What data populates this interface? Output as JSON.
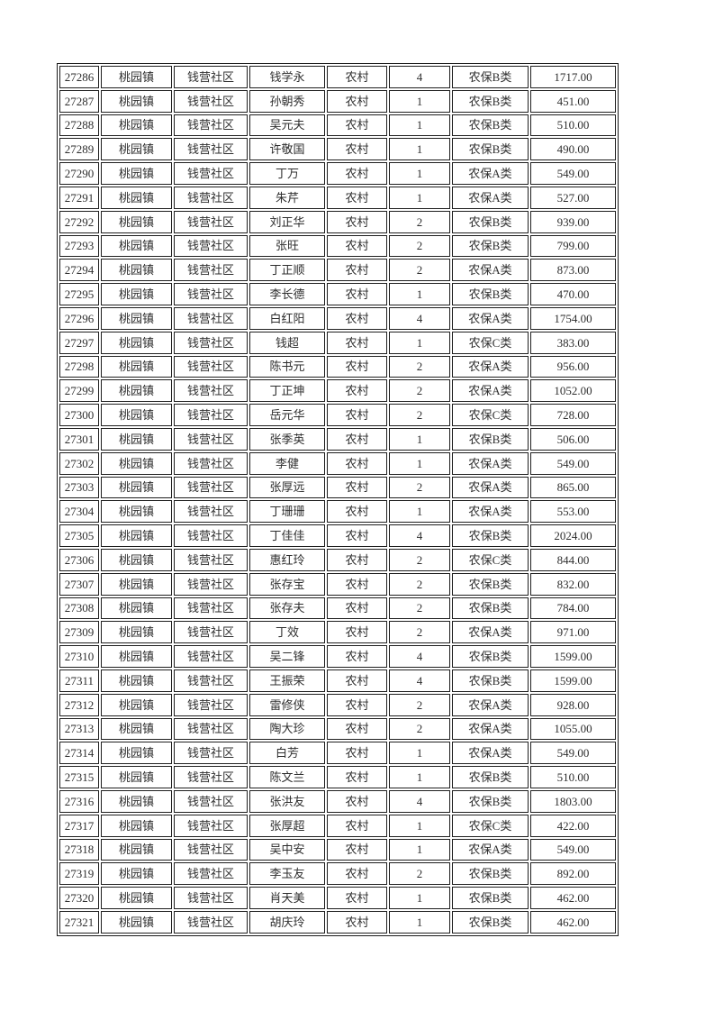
{
  "table": {
    "columns": [
      {
        "key": "id"
      },
      {
        "key": "town"
      },
      {
        "key": "community"
      },
      {
        "key": "name"
      },
      {
        "key": "type"
      },
      {
        "key": "count"
      },
      {
        "key": "category"
      },
      {
        "key": "amount"
      }
    ],
    "rows": [
      {
        "id": "27286",
        "town": "桃园镇",
        "community": "钱营社区",
        "name": "钱学永",
        "type": "农村",
        "count": "4",
        "category": "农保B类",
        "amount": "1717.00"
      },
      {
        "id": "27287",
        "town": "桃园镇",
        "community": "钱营社区",
        "name": "孙朝秀",
        "type": "农村",
        "count": "1",
        "category": "农保B类",
        "amount": "451.00"
      },
      {
        "id": "27288",
        "town": "桃园镇",
        "community": "钱营社区",
        "name": "吴元夫",
        "type": "农村",
        "count": "1",
        "category": "农保B类",
        "amount": "510.00"
      },
      {
        "id": "27289",
        "town": "桃园镇",
        "community": "钱营社区",
        "name": "许敬国",
        "type": "农村",
        "count": "1",
        "category": "农保B类",
        "amount": "490.00"
      },
      {
        "id": "27290",
        "town": "桃园镇",
        "community": "钱营社区",
        "name": "丁万",
        "type": "农村",
        "count": "1",
        "category": "农保A类",
        "amount": "549.00"
      },
      {
        "id": "27291",
        "town": "桃园镇",
        "community": "钱营社区",
        "name": "朱芹",
        "type": "农村",
        "count": "1",
        "category": "农保A类",
        "amount": "527.00"
      },
      {
        "id": "27292",
        "town": "桃园镇",
        "community": "钱营社区",
        "name": "刘正华",
        "type": "农村",
        "count": "2",
        "category": "农保B类",
        "amount": "939.00"
      },
      {
        "id": "27293",
        "town": "桃园镇",
        "community": "钱营社区",
        "name": "张旺",
        "type": "农村",
        "count": "2",
        "category": "农保B类",
        "amount": "799.00"
      },
      {
        "id": "27294",
        "town": "桃园镇",
        "community": "钱营社区",
        "name": "丁正顺",
        "type": "农村",
        "count": "2",
        "category": "农保A类",
        "amount": "873.00"
      },
      {
        "id": "27295",
        "town": "桃园镇",
        "community": "钱营社区",
        "name": "李长德",
        "type": "农村",
        "count": "1",
        "category": "农保B类",
        "amount": "470.00"
      },
      {
        "id": "27296",
        "town": "桃园镇",
        "community": "钱营社区",
        "name": "白红阳",
        "type": "农村",
        "count": "4",
        "category": "农保A类",
        "amount": "1754.00"
      },
      {
        "id": "27297",
        "town": "桃园镇",
        "community": "钱营社区",
        "name": "钱超",
        "type": "农村",
        "count": "1",
        "category": "农保C类",
        "amount": "383.00"
      },
      {
        "id": "27298",
        "town": "桃园镇",
        "community": "钱营社区",
        "name": "陈书元",
        "type": "农村",
        "count": "2",
        "category": "农保A类",
        "amount": "956.00"
      },
      {
        "id": "27299",
        "town": "桃园镇",
        "community": "钱营社区",
        "name": "丁正坤",
        "type": "农村",
        "count": "2",
        "category": "农保A类",
        "amount": "1052.00"
      },
      {
        "id": "27300",
        "town": "桃园镇",
        "community": "钱营社区",
        "name": "岳元华",
        "type": "农村",
        "count": "2",
        "category": "农保C类",
        "amount": "728.00"
      },
      {
        "id": "27301",
        "town": "桃园镇",
        "community": "钱营社区",
        "name": "张季英",
        "type": "农村",
        "count": "1",
        "category": "农保B类",
        "amount": "506.00"
      },
      {
        "id": "27302",
        "town": "桃园镇",
        "community": "钱营社区",
        "name": "李健",
        "type": "农村",
        "count": "1",
        "category": "农保A类",
        "amount": "549.00"
      },
      {
        "id": "27303",
        "town": "桃园镇",
        "community": "钱营社区",
        "name": "张厚远",
        "type": "农村",
        "count": "2",
        "category": "农保A类",
        "amount": "865.00"
      },
      {
        "id": "27304",
        "town": "桃园镇",
        "community": "钱营社区",
        "name": "丁珊珊",
        "type": "农村",
        "count": "1",
        "category": "农保A类",
        "amount": "553.00"
      },
      {
        "id": "27305",
        "town": "桃园镇",
        "community": "钱营社区",
        "name": "丁佳佳",
        "type": "农村",
        "count": "4",
        "category": "农保B类",
        "amount": "2024.00"
      },
      {
        "id": "27306",
        "town": "桃园镇",
        "community": "钱营社区",
        "name": "惠红玲",
        "type": "农村",
        "count": "2",
        "category": "农保C类",
        "amount": "844.00"
      },
      {
        "id": "27307",
        "town": "桃园镇",
        "community": "钱营社区",
        "name": "张存宝",
        "type": "农村",
        "count": "2",
        "category": "农保B类",
        "amount": "832.00"
      },
      {
        "id": "27308",
        "town": "桃园镇",
        "community": "钱营社区",
        "name": "张存夫",
        "type": "农村",
        "count": "2",
        "category": "农保B类",
        "amount": "784.00"
      },
      {
        "id": "27309",
        "town": "桃园镇",
        "community": "钱营社区",
        "name": "丁效",
        "type": "农村",
        "count": "2",
        "category": "农保A类",
        "amount": "971.00"
      },
      {
        "id": "27310",
        "town": "桃园镇",
        "community": "钱营社区",
        "name": "吴二锋",
        "type": "农村",
        "count": "4",
        "category": "农保B类",
        "amount": "1599.00"
      },
      {
        "id": "27311",
        "town": "桃园镇",
        "community": "钱营社区",
        "name": "王振荣",
        "type": "农村",
        "count": "4",
        "category": "农保B类",
        "amount": "1599.00"
      },
      {
        "id": "27312",
        "town": "桃园镇",
        "community": "钱营社区",
        "name": "雷修侠",
        "type": "农村",
        "count": "2",
        "category": "农保A类",
        "amount": "928.00"
      },
      {
        "id": "27313",
        "town": "桃园镇",
        "community": "钱营社区",
        "name": "陶大珍",
        "type": "农村",
        "count": "2",
        "category": "农保A类",
        "amount": "1055.00"
      },
      {
        "id": "27314",
        "town": "桃园镇",
        "community": "钱营社区",
        "name": "白芳",
        "type": "农村",
        "count": "1",
        "category": "农保A类",
        "amount": "549.00"
      },
      {
        "id": "27315",
        "town": "桃园镇",
        "community": "钱营社区",
        "name": "陈文兰",
        "type": "农村",
        "count": "1",
        "category": "农保B类",
        "amount": "510.00"
      },
      {
        "id": "27316",
        "town": "桃园镇",
        "community": "钱营社区",
        "name": "张洪友",
        "type": "农村",
        "count": "4",
        "category": "农保B类",
        "amount": "1803.00"
      },
      {
        "id": "27317",
        "town": "桃园镇",
        "community": "钱营社区",
        "name": "张厚超",
        "type": "农村",
        "count": "1",
        "category": "农保C类",
        "amount": "422.00"
      },
      {
        "id": "27318",
        "town": "桃园镇",
        "community": "钱营社区",
        "name": "吴中安",
        "type": "农村",
        "count": "1",
        "category": "农保A类",
        "amount": "549.00"
      },
      {
        "id": "27319",
        "town": "桃园镇",
        "community": "钱营社区",
        "name": "李玉友",
        "type": "农村",
        "count": "2",
        "category": "农保B类",
        "amount": "892.00"
      },
      {
        "id": "27320",
        "town": "桃园镇",
        "community": "钱营社区",
        "name": "肖天美",
        "type": "农村",
        "count": "1",
        "category": "农保B类",
        "amount": "462.00"
      },
      {
        "id": "27321",
        "town": "桃园镇",
        "community": "钱营社区",
        "name": "胡庆玲",
        "type": "农村",
        "count": "1",
        "category": "农保B类",
        "amount": "462.00"
      }
    ]
  }
}
